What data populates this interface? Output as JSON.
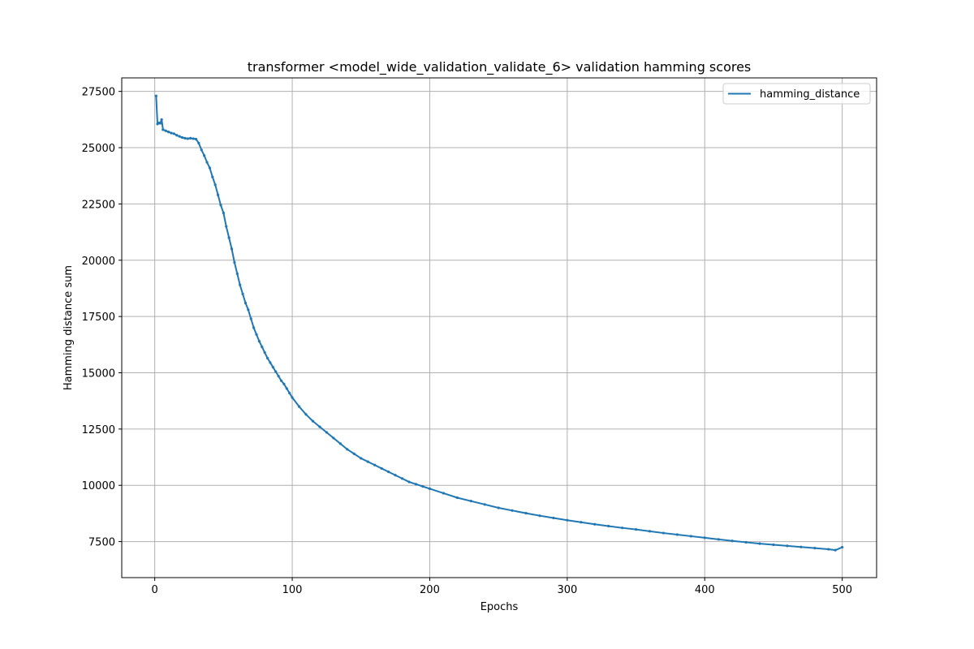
{
  "chart_data": {
    "type": "line",
    "title": "transformer <model_wide_validation_validate_6> validation hamming scores",
    "xlabel": "Epochs",
    "ylabel": "Hamming distance sum",
    "xlim": [
      -24,
      525
    ],
    "ylim": [
      5900,
      28100
    ],
    "xticks": [
      0,
      100,
      200,
      300,
      400,
      500
    ],
    "yticks": [
      7500,
      10000,
      12500,
      15000,
      17500,
      20000,
      22500,
      25000,
      27500
    ],
    "grid": true,
    "legend_position": "upper right",
    "series": [
      {
        "name": "hamming_distance",
        "color": "#1f77b4",
        "points": [
          [
            1,
            27300
          ],
          [
            2,
            26050
          ],
          [
            3,
            26100
          ],
          [
            4,
            26080
          ],
          [
            5,
            26250
          ],
          [
            6,
            25800
          ],
          [
            8,
            25750
          ],
          [
            10,
            25700
          ],
          [
            12,
            25650
          ],
          [
            14,
            25620
          ],
          [
            16,
            25550
          ],
          [
            18,
            25500
          ],
          [
            20,
            25450
          ],
          [
            22,
            25420
          ],
          [
            24,
            25400
          ],
          [
            26,
            25420
          ],
          [
            28,
            25400
          ],
          [
            30,
            25380
          ],
          [
            32,
            25200
          ],
          [
            34,
            24900
          ],
          [
            36,
            24650
          ],
          [
            38,
            24350
          ],
          [
            40,
            24100
          ],
          [
            42,
            23700
          ],
          [
            44,
            23350
          ],
          [
            46,
            22900
          ],
          [
            48,
            22450
          ],
          [
            50,
            22100
          ],
          [
            52,
            21500
          ],
          [
            54,
            21000
          ],
          [
            56,
            20500
          ],
          [
            58,
            19900
          ],
          [
            60,
            19400
          ],
          [
            62,
            18900
          ],
          [
            64,
            18500
          ],
          [
            66,
            18100
          ],
          [
            68,
            17800
          ],
          [
            70,
            17400
          ],
          [
            72,
            17000
          ],
          [
            74,
            16700
          ],
          [
            76,
            16400
          ],
          [
            78,
            16150
          ],
          [
            80,
            15900
          ],
          [
            82,
            15650
          ],
          [
            84,
            15450
          ],
          [
            86,
            15250
          ],
          [
            88,
            15050
          ],
          [
            90,
            14850
          ],
          [
            92,
            14650
          ],
          [
            94,
            14500
          ],
          [
            96,
            14300
          ],
          [
            98,
            14100
          ],
          [
            100,
            13900
          ],
          [
            105,
            13500
          ],
          [
            110,
            13150
          ],
          [
            115,
            12850
          ],
          [
            120,
            12600
          ],
          [
            125,
            12350
          ],
          [
            130,
            12100
          ],
          [
            135,
            11850
          ],
          [
            140,
            11600
          ],
          [
            145,
            11400
          ],
          [
            150,
            11200
          ],
          [
            155,
            11050
          ],
          [
            160,
            10900
          ],
          [
            165,
            10750
          ],
          [
            170,
            10600
          ],
          [
            175,
            10450
          ],
          [
            180,
            10300
          ],
          [
            185,
            10150
          ],
          [
            190,
            10050
          ],
          [
            195,
            9950
          ],
          [
            200,
            9850
          ],
          [
            210,
            9650
          ],
          [
            220,
            9450
          ],
          [
            230,
            9300
          ],
          [
            240,
            9150
          ],
          [
            250,
            9000
          ],
          [
            260,
            8880
          ],
          [
            270,
            8760
          ],
          [
            280,
            8650
          ],
          [
            290,
            8550
          ],
          [
            300,
            8450
          ],
          [
            310,
            8360
          ],
          [
            320,
            8270
          ],
          [
            330,
            8190
          ],
          [
            340,
            8110
          ],
          [
            350,
            8040
          ],
          [
            360,
            7960
          ],
          [
            370,
            7880
          ],
          [
            380,
            7810
          ],
          [
            390,
            7740
          ],
          [
            400,
            7670
          ],
          [
            410,
            7600
          ],
          [
            420,
            7530
          ],
          [
            430,
            7470
          ],
          [
            440,
            7410
          ],
          [
            450,
            7360
          ],
          [
            460,
            7310
          ],
          [
            470,
            7260
          ],
          [
            480,
            7210
          ],
          [
            490,
            7160
          ],
          [
            495,
            7120
          ],
          [
            500,
            7250
          ]
        ]
      }
    ]
  }
}
